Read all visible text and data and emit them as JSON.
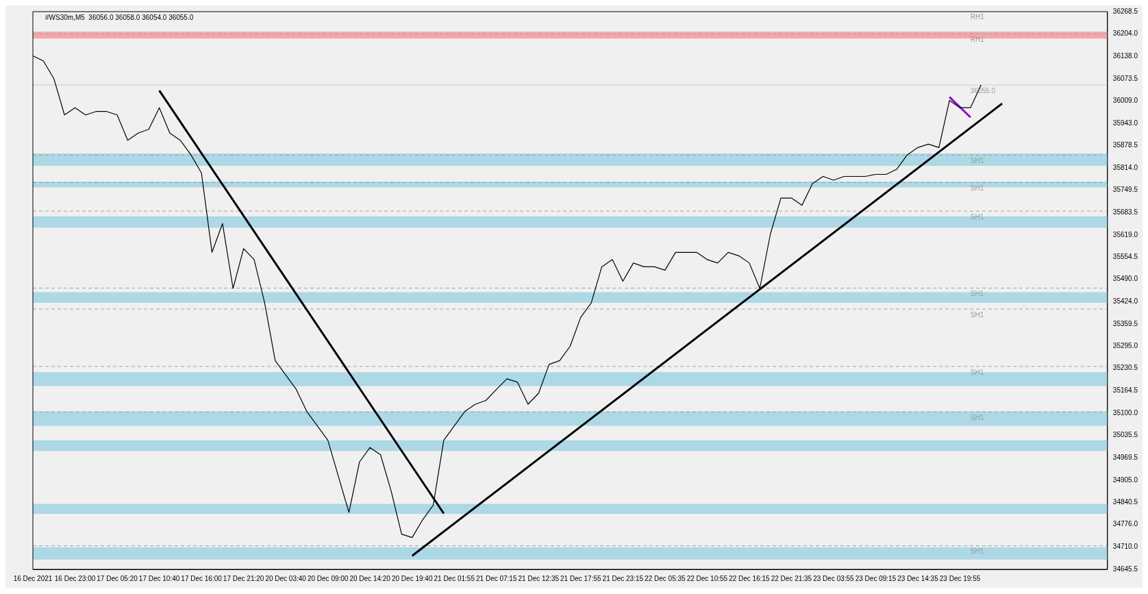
{
  "chart_data": {
    "type": "line",
    "title": "#WS30m,M5  36056.0 36058.0 36054.0 36055.0",
    "categories": [
      "16 Dec 2021",
      null,
      null,
      null,
      "16 Dec 23:00",
      null,
      null,
      null,
      "17 Dec 05:20",
      null,
      null,
      null,
      "17 Dec 10:40",
      null,
      null,
      null,
      "17 Dec 16:00",
      null,
      null,
      null,
      "17 Dec 21:20",
      null,
      null,
      null,
      "20 Dec 03:40",
      null,
      null,
      null,
      "20 Dec 09:00",
      null,
      null,
      null,
      "20 Dec 14:20",
      null,
      null,
      null,
      "20 Dec 19:40",
      null,
      null,
      null,
      "21 Dec 01:55",
      null,
      null,
      null,
      "21 Dec 07:15",
      null,
      null,
      null,
      "21 Dec 12:35",
      null,
      null,
      null,
      "21 Dec 17:55",
      null,
      null,
      null,
      "21 Dec 23:15",
      null,
      null,
      null,
      "22 Dec 05:35",
      null,
      null,
      null,
      "22 Dec 10:55",
      null,
      null,
      null,
      "22 Dec 16:15",
      null,
      null,
      null,
      "22 Dec 21:35",
      null,
      null,
      null,
      "23 Dec 03:55",
      null,
      null,
      null,
      "23 Dec 09:15",
      null,
      null,
      null,
      "23 Dec 14:35",
      null,
      null,
      null,
      "23 Dec 19:55",
      null,
      null,
      null,
      null,
      null,
      null,
      null,
      null,
      null,
      null,
      null,
      null,
      null,
      null
    ],
    "series": [
      {
        "color": "#000000",
        "values": [
          36140,
          36125,
          36073,
          35968,
          35989,
          35968,
          35978,
          35978,
          35968,
          35894,
          35915,
          35926,
          35989,
          35915,
          35894,
          35852,
          35799,
          35568,
          35652,
          35463,
          35579,
          35547,
          35421,
          35253,
          35211,
          35169,
          35105,
          35063,
          35021,
          34916,
          34811,
          34958,
          35000,
          34979,
          34874,
          34748,
          34738,
          34790,
          34832,
          35021,
          35063,
          35105,
          35126,
          35137,
          35169,
          35200,
          35190,
          35126,
          35158,
          35242,
          35253,
          35295,
          35379,
          35421,
          35526,
          35547,
          35484,
          35537,
          35526,
          35526,
          35516,
          35568,
          35568,
          35568,
          35547,
          35537,
          35568,
          35558,
          35537,
          35463,
          35621,
          35726,
          35726,
          35705,
          35768,
          35789,
          35778,
          35789,
          35789,
          35789,
          35795,
          35795,
          35810,
          35852,
          35873,
          35883,
          35873,
          36010,
          35989,
          35989,
          36055,
          null,
          null,
          null,
          null,
          null,
          null,
          null,
          null,
          null,
          null,
          null,
          null
        ]
      },
      {
        "color": "#000000",
        "values": [
          null,
          null,
          null,
          null,
          null,
          null,
          null,
          null,
          null,
          null,
          null,
          null,
          36039,
          null,
          null,
          null,
          null,
          null,
          null,
          null,
          null,
          null,
          null,
          null,
          null,
          null,
          null,
          null,
          null,
          null,
          null,
          null,
          null,
          null,
          null,
          null,
          null,
          null,
          null,
          34808,
          null,
          null,
          null,
          null,
          null,
          null,
          null,
          null,
          null,
          null,
          null,
          null,
          null,
          null,
          null,
          null,
          null,
          null,
          null,
          null,
          null,
          null,
          null,
          null,
          null,
          null,
          null,
          null,
          null,
          null,
          null,
          null,
          null,
          null,
          null,
          null,
          null,
          null,
          null,
          null,
          null,
          null,
          null,
          null,
          null,
          null,
          null,
          null,
          null,
          null,
          null,
          null,
          null,
          null,
          null,
          null,
          null,
          null,
          null,
          null,
          null,
          null,
          null
        ]
      },
      {
        "color": "#000000",
        "values": [
          null,
          null,
          null,
          null,
          null,
          null,
          null,
          null,
          null,
          null,
          null,
          null,
          null,
          null,
          null,
          null,
          null,
          null,
          null,
          null,
          null,
          null,
          null,
          null,
          null,
          null,
          null,
          null,
          null,
          null,
          null,
          null,
          null,
          null,
          null,
          null,
          34685,
          null,
          null,
          null,
          null,
          null,
          null,
          null,
          null,
          null,
          null,
          null,
          null,
          null,
          null,
          null,
          null,
          null,
          null,
          null,
          null,
          null,
          null,
          null,
          null,
          null,
          null,
          null,
          null,
          null,
          null,
          null,
          null,
          null,
          null,
          null,
          null,
          null,
          null,
          null,
          null,
          null,
          null,
          null,
          null,
          null,
          null,
          null,
          null,
          null,
          null,
          null,
          null,
          null,
          null,
          null,
          36001,
          null,
          null,
          null,
          null,
          null,
          null,
          null,
          null,
          null,
          null
        ]
      },
      {
        "color": "#9400d3",
        "values": [
          null,
          null,
          null,
          null,
          null,
          null,
          null,
          null,
          null,
          null,
          null,
          null,
          null,
          null,
          null,
          null,
          null,
          null,
          null,
          null,
          null,
          null,
          null,
          null,
          null,
          null,
          null,
          null,
          null,
          null,
          null,
          null,
          null,
          null,
          null,
          null,
          null,
          null,
          null,
          null,
          null,
          null,
          null,
          null,
          null,
          null,
          null,
          null,
          null,
          null,
          null,
          null,
          null,
          null,
          null,
          null,
          null,
          null,
          null,
          null,
          null,
          null,
          null,
          null,
          null,
          null,
          null,
          null,
          null,
          null,
          null,
          null,
          null,
          null,
          null,
          null,
          null,
          null,
          null,
          null,
          null,
          null,
          null,
          null,
          null,
          null,
          null,
          36020,
          null,
          35961,
          null,
          null,
          null,
          null,
          null,
          null,
          null,
          null,
          null,
          null,
          null,
          null,
          null
        ]
      }
    ],
    "ylim": [
      34645.5,
      36268.5
    ],
    "yticks": [
      {
        "value": 36268.5,
        "label": "36268.5"
      },
      {
        "value": 36204,
        "label": "36204.0"
      },
      {
        "value": 36138,
        "label": "36138.0"
      },
      {
        "value": 36073.5,
        "label": "36073.5"
      },
      {
        "value": 36009,
        "label": "36009.0"
      },
      {
        "value": 35943,
        "label": "35943.0"
      },
      {
        "value": 35878.5,
        "label": "35878.5"
      },
      {
        "value": 35814,
        "label": "35814.0"
      },
      {
        "value": 35749.5,
        "label": "35749.5"
      },
      {
        "value": 35683.5,
        "label": "35683.5"
      },
      {
        "value": 35619,
        "label": "35619.0"
      },
      {
        "value": 35554.5,
        "label": "35554.5"
      },
      {
        "value": 35490,
        "label": "35490.0"
      },
      {
        "value": 35424,
        "label": "35424.0"
      },
      {
        "value": 35359.5,
        "label": "35359.5"
      },
      {
        "value": 35295,
        "label": "35295.0"
      },
      {
        "value": 35230.5,
        "label": "35230.5"
      },
      {
        "value": 35164.5,
        "label": "35164.5"
      },
      {
        "value": 35100,
        "label": "35100.0"
      },
      {
        "value": 35035.5,
        "label": "35035.5"
      },
      {
        "value": 34969.5,
        "label": "34969.5"
      },
      {
        "value": 34905,
        "label": "34905.0"
      },
      {
        "value": 34840.5,
        "label": "34840.5"
      },
      {
        "value": 34776,
        "label": "34776.0"
      },
      {
        "value": 34710,
        "label": "34710.0"
      },
      {
        "value": 34645.5,
        "label": "34645.5"
      }
    ],
    "annotations": [
      "RH1"
    ],
    "grid": false,
    "legend": false,
    "marker": "none",
    "line_style": "solid",
    "bands": [
      {
        "axis": "y",
        "from": 36190,
        "to": 36210,
        "color": "#f4a7a7"
      },
      {
        "axis": "y",
        "from": 35820,
        "to": 35856,
        "color": "#add8e6"
      },
      {
        "axis": "y",
        "from": 35757,
        "to": 35774,
        "color": "#add8e6"
      },
      {
        "axis": "y",
        "from": 35640,
        "to": 35673,
        "color": "#add8e6"
      },
      {
        "axis": "y",
        "from": 35421,
        "to": 35452,
        "color": "#add8e6"
      },
      {
        "axis": "y",
        "from": 35179,
        "to": 35219,
        "color": "#add8e6"
      },
      {
        "axis": "y",
        "from": 35063,
        "to": 35105,
        "color": "#add8e6"
      },
      {
        "axis": "y",
        "from": 34990,
        "to": 35021,
        "color": "#add8e6"
      },
      {
        "axis": "y",
        "from": 34807,
        "to": 34836,
        "color": "#add8e6"
      },
      {
        "axis": "y",
        "from": 34674,
        "to": 34710,
        "color": "#add8e6"
      }
    ],
    "ref_lines": [
      {
        "axis": "y",
        "value": 36204,
        "label": "RH1",
        "color": "#a0a0a0",
        "line_style": "dashed"
      },
      {
        "axis": "y",
        "value": 36055,
        "label": "36055.0",
        "color": "#c8c8c8",
        "line_style": "solid"
      },
      {
        "axis": "y",
        "value": 35851,
        "label": "SH1",
        "color": "#a0a0a0",
        "line_style": "dashed"
      },
      {
        "axis": "y",
        "value": 35771,
        "label": "SH1",
        "color": "#a0a0a0",
        "line_style": "dashed"
      },
      {
        "axis": "y",
        "value": 35688,
        "label": "SH1",
        "color": "#a0a0a0",
        "line_style": "dashed"
      },
      {
        "axis": "y",
        "value": 35464,
        "label": "SH1",
        "color": "#a0a0a0",
        "line_style": "dashed"
      },
      {
        "axis": "y",
        "value": 35403,
        "label": "SH1",
        "color": "#a0a0a0",
        "line_style": "dashed"
      },
      {
        "axis": "y",
        "value": 35236,
        "label": "SH1",
        "color": "#a0a0a0",
        "line_style": "dashed"
      },
      {
        "axis": "y",
        "value": 35104,
        "label": "SH1",
        "color": "#a0a0a0",
        "line_style": "dashed"
      },
      {
        "axis": "y",
        "value": 34714,
        "label": "SH1",
        "color": "#a0a0a0",
        "line_style": "dashed"
      }
    ]
  }
}
